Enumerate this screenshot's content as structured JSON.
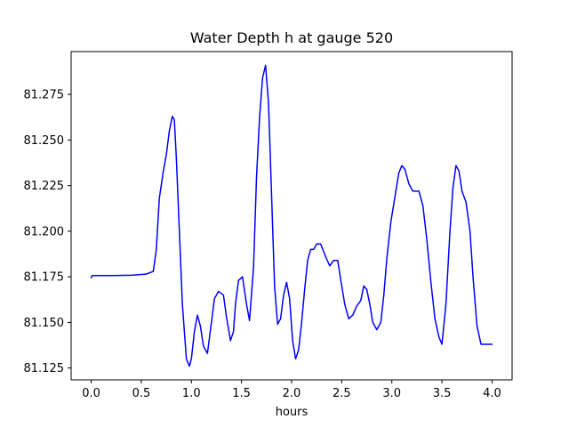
{
  "chart_data": {
    "type": "line",
    "title": "Water Depth h at gauge 520",
    "xlabel": "hours",
    "ylabel": "",
    "xlim": [
      -0.2,
      4.2
    ],
    "ylim": [
      81.1185,
      81.2985
    ],
    "xticks": [
      "0.0",
      "0.5",
      "1.0",
      "1.5",
      "2.0",
      "2.5",
      "3.0",
      "3.5",
      "4.0"
    ],
    "yticks": [
      "81.125",
      "81.150",
      "81.175",
      "81.200",
      "81.225",
      "81.250",
      "81.275"
    ],
    "grid": false,
    "series": [
      {
        "color": "#0000ff",
        "x": [
          0.0,
          0.01,
          0.2,
          0.4,
          0.55,
          0.62,
          0.65,
          0.68,
          0.72,
          0.75,
          0.78,
          0.81,
          0.83,
          0.85,
          0.88,
          0.91,
          0.95,
          0.98,
          1.0,
          1.03,
          1.06,
          1.09,
          1.12,
          1.16,
          1.2,
          1.23,
          1.27,
          1.32,
          1.35,
          1.39,
          1.42,
          1.44,
          1.47,
          1.51,
          1.55,
          1.58,
          1.62,
          1.65,
          1.68,
          1.71,
          1.74,
          1.77,
          1.8,
          1.83,
          1.86,
          1.89,
          1.92,
          1.95,
          1.98,
          2.01,
          2.04,
          2.07,
          2.1,
          2.13,
          2.16,
          2.19,
          2.22,
          2.25,
          2.29,
          2.34,
          2.38,
          2.42,
          2.46,
          2.5,
          2.53,
          2.57,
          2.61,
          2.65,
          2.69,
          2.72,
          2.75,
          2.78,
          2.81,
          2.85,
          2.89,
          2.92,
          2.95,
          2.99,
          3.04,
          3.07,
          3.1,
          3.13,
          3.17,
          3.21,
          3.24,
          3.27,
          3.31,
          3.35,
          3.39,
          3.43,
          3.47,
          3.5,
          3.54,
          3.58,
          3.61,
          3.64,
          3.67,
          3.7,
          3.74,
          3.78,
          3.81,
          3.85,
          3.89,
          3.93,
          3.97,
          4.0
        ],
        "y": [
          81.1745,
          81.1757,
          81.1757,
          81.1759,
          81.1765,
          81.178,
          81.19,
          81.218,
          81.233,
          81.242,
          81.255,
          81.263,
          81.261,
          81.24,
          81.2,
          81.16,
          81.13,
          81.126,
          81.13,
          81.145,
          81.154,
          81.148,
          81.137,
          81.133,
          81.15,
          81.163,
          81.167,
          81.165,
          81.153,
          81.14,
          81.145,
          81.16,
          81.173,
          81.175,
          81.16,
          81.151,
          81.18,
          81.23,
          81.262,
          81.284,
          81.291,
          81.27,
          81.22,
          81.17,
          81.149,
          81.152,
          81.165,
          81.172,
          81.163,
          81.14,
          81.13,
          81.135,
          81.15,
          81.168,
          81.184,
          81.19,
          81.19,
          81.193,
          81.193,
          81.186,
          81.181,
          81.184,
          81.184,
          81.17,
          81.16,
          81.152,
          81.154,
          81.159,
          81.162,
          81.17,
          81.168,
          81.16,
          81.15,
          81.146,
          81.15,
          81.165,
          81.185,
          81.205,
          81.222,
          81.232,
          81.236,
          81.234,
          81.226,
          81.222,
          81.222,
          81.222,
          81.214,
          81.195,
          81.172,
          81.152,
          81.142,
          81.138,
          81.16,
          81.2,
          81.224,
          81.236,
          81.233,
          81.222,
          81.216,
          81.2,
          81.175,
          81.148,
          81.138,
          81.138,
          81.138,
          81.138
        ]
      }
    ]
  }
}
